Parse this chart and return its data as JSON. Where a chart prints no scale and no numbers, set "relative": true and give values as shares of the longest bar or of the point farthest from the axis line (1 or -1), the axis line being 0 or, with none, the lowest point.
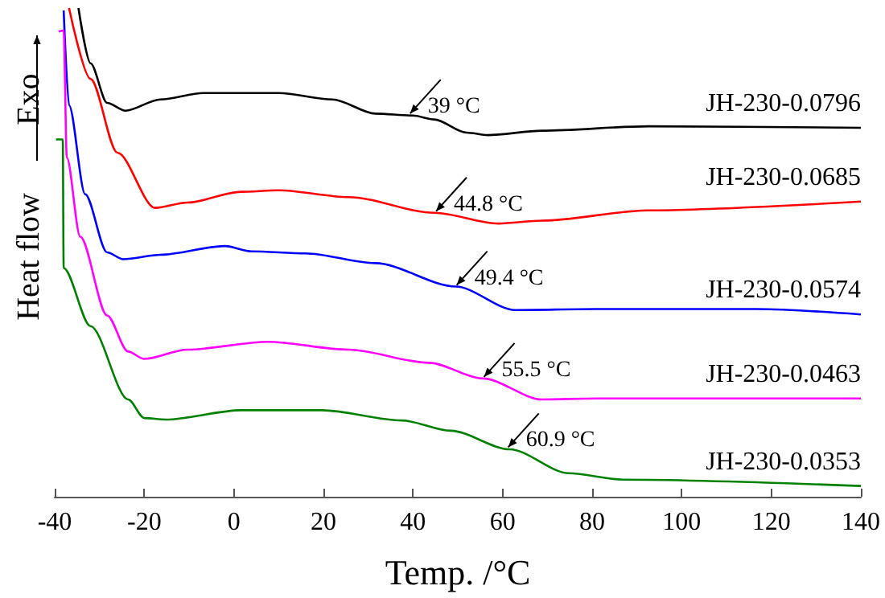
{
  "chart_data": {
    "type": "line",
    "relative": true,
    "xlabel": "Temp. /°C",
    "ylabel": "Heat flow",
    "xlim": [
      -40,
      140
    ],
    "xticks": [
      -40,
      -20,
      0,
      20,
      40,
      60,
      80,
      100,
      120,
      140
    ],
    "grid": false,
    "marker": "none",
    "line_style": "solid",
    "annotations": [
      "Exo",
      {
        "text": "39 °C",
        "x": 39,
        "y": 0.781
      },
      {
        "text": "44.8 °C",
        "x": 44.8,
        "y": 0.581
      },
      {
        "text": "49.4 °C",
        "x": 49.4,
        "y": 0.43
      },
      {
        "text": "55.5 °C",
        "x": 55.5,
        "y": 0.242
      },
      {
        "text": "60.9 °C",
        "x": 60.9,
        "y": 0.098
      }
    ],
    "series": [
      {
        "name": "JH-230-0.0796",
        "color": "#000000",
        "x": [
          -34.7,
          -32,
          -28.3,
          -24.2,
          -16.4,
          -6.8,
          10,
          22,
          31.6,
          40,
          44.7,
          52,
          56.7,
          68.8,
          92.6,
          140
        ],
        "values": [
          1.0,
          0.887,
          0.806,
          0.79,
          0.813,
          0.826,
          0.826,
          0.813,
          0.784,
          0.78,
          0.772,
          0.745,
          0.74,
          0.749,
          0.758,
          0.755
        ]
      },
      {
        "name": "JH-230-0.0685",
        "color": "#ff0000",
        "x": [
          -36.8,
          -32,
          -26,
          -17.6,
          -10.4,
          1.6,
          10,
          25.6,
          44.8,
          59.1,
          68.8,
          92.6,
          140
        ],
        "values": [
          1.0,
          0.855,
          0.704,
          0.591,
          0.602,
          0.624,
          0.627,
          0.613,
          0.581,
          0.559,
          0.565,
          0.586,
          0.604
        ]
      },
      {
        "name": "JH-230-0.0574",
        "color": "#0000ff",
        "x": [
          -38,
          -36.8,
          -33.2,
          -28.3,
          -24.7,
          -16.4,
          -2,
          4,
          16,
          31.6,
          49.6,
          62.8,
          80.7,
          116.7,
          140
        ],
        "values": [
          0.995,
          0.801,
          0.619,
          0.5,
          0.486,
          0.495,
          0.513,
          0.502,
          0.498,
          0.478,
          0.43,
          0.382,
          0.384,
          0.384,
          0.373
        ]
      },
      {
        "name": "JH-230-0.0463",
        "color": "#ff00ff",
        "x": [
          -39.1,
          -38,
          -37.3,
          -34.3,
          -28.3,
          -23.6,
          -20,
          -10.4,
          7.6,
          25.6,
          43.6,
          55.6,
          68.8,
          80.7,
          140
        ],
        "values": [
          0.952,
          0.954,
          0.694,
          0.532,
          0.371,
          0.297,
          0.282,
          0.301,
          0.317,
          0.301,
          0.274,
          0.242,
          0.199,
          0.201,
          0.201
        ]
      },
      {
        "name": "JH-230-0.0353",
        "color": "#008000",
        "x": [
          -39.7,
          -38.2,
          -38,
          -32,
          -23.6,
          -20,
          -15.2,
          1.6,
          19.6,
          37.6,
          48.4,
          61.6,
          74.8,
          86.8,
          140
        ],
        "values": [
          0.731,
          0.731,
          0.468,
          0.349,
          0.199,
          0.161,
          0.158,
          0.177,
          0.177,
          0.156,
          0.135,
          0.097,
          0.048,
          0.035,
          0.022
        ]
      }
    ]
  }
}
